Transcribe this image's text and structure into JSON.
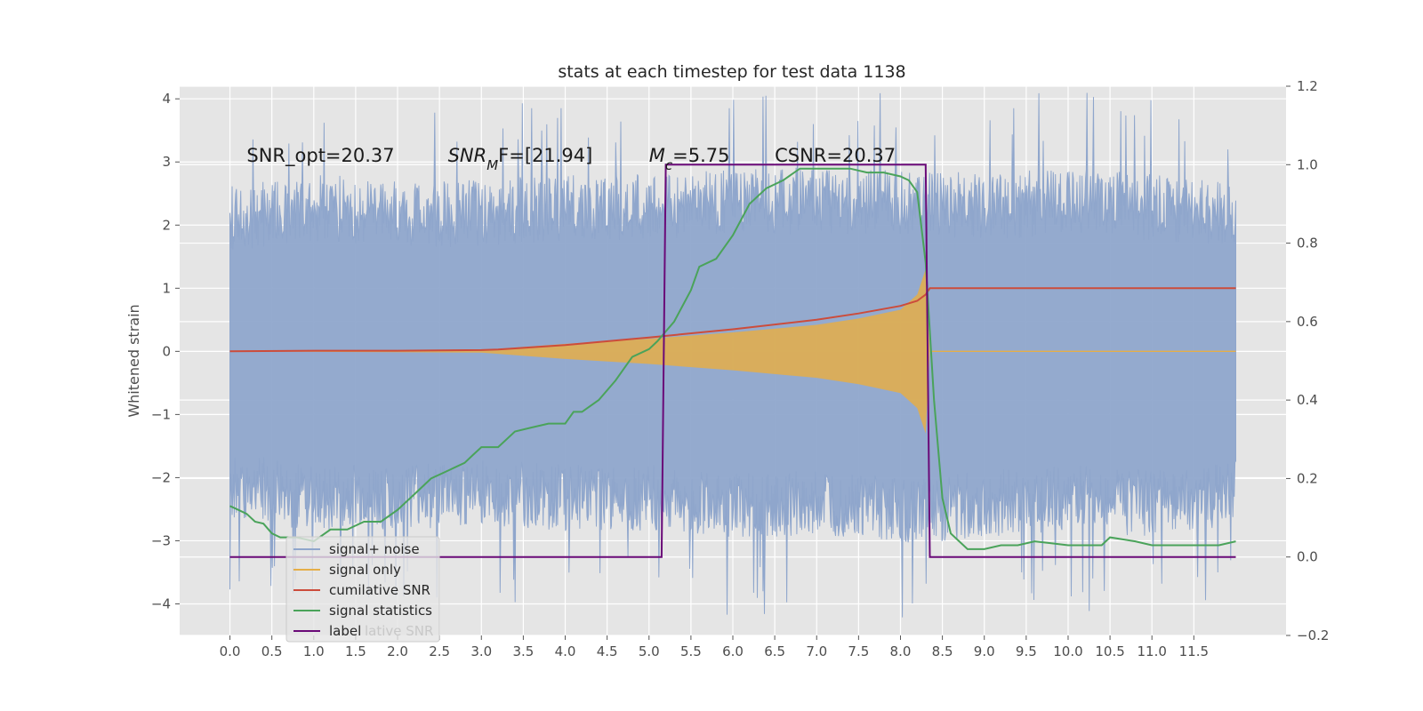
{
  "chart_data": {
    "type": "line",
    "title": "stats at each timestep for test data 1138",
    "ylabel": "Whitened strain",
    "xlabel": "",
    "xlim": [
      -0.6,
      12.6
    ],
    "ylim": [
      -4.5,
      4.2
    ],
    "y2lim": [
      -0.2,
      1.2
    ],
    "grid": true,
    "legend_position": "lower-left",
    "x_ticks": [
      "0.0",
      "0.5",
      "1.0",
      "1.5",
      "2.0",
      "2.5",
      "3.0",
      "3.5",
      "4.0",
      "4.5",
      "5.0",
      "5.5",
      "6.0",
      "6.5",
      "7.0",
      "7.5",
      "8.0",
      "8.5",
      "9.0",
      "9.5",
      "10.0",
      "10.5",
      "11.0",
      "11.5"
    ],
    "y_ticks": [
      "4",
      "3",
      "2",
      "1",
      "0",
      "−1",
      "−2",
      "−3",
      "−4"
    ],
    "y2_ticks": [
      "1.2",
      "1.0",
      "0.8",
      "0.6",
      "0.4",
      "0.2",
      "0.0",
      "−0.2"
    ],
    "annotations": [
      {
        "text": "SNR_opt=20.37",
        "x": 0.2,
        "y": 3.0
      },
      {
        "text": "SNR",
        "sub": "M",
        "suffix": "F=[21.94]",
        "x": 2.6,
        "y": 3.0
      },
      {
        "text": "M",
        "sub": "c",
        "suffix": "=5.75",
        "x": 5.0,
        "y": 3.0
      },
      {
        "text": "CSNR=20.37",
        "x": 6.5,
        "y": 3.0
      }
    ],
    "series": [
      {
        "name": "signal+ noise",
        "color": "#8fa6cc",
        "axis": "left",
        "envelope": {
          "x": [
            0.0,
            1.0,
            2.0,
            3.0,
            4.0,
            5.0,
            6.0,
            7.0,
            8.0,
            8.3,
            9.0,
            10.0,
            11.0,
            12.0
          ],
          "upper": [
            2.1,
            2.3,
            2.2,
            2.2,
            2.3,
            2.3,
            2.4,
            2.4,
            2.4,
            2.4,
            2.3,
            2.4,
            2.3,
            2.2
          ],
          "lower": [
            -2.1,
            -2.3,
            -2.3,
            -2.2,
            -2.3,
            -2.3,
            -2.4,
            -2.4,
            -2.5,
            -2.5,
            -2.4,
            -2.3,
            -2.4,
            -2.2
          ]
        }
      },
      {
        "name": "signal only",
        "color": "#e5ae48",
        "axis": "left",
        "envelope": {
          "x": [
            0.0,
            3.0,
            4.0,
            5.0,
            6.0,
            7.0,
            7.5,
            8.0,
            8.2,
            8.3,
            8.35,
            12.0
          ],
          "upper": [
            0.0,
            0.02,
            0.12,
            0.2,
            0.3,
            0.42,
            0.52,
            0.66,
            0.9,
            1.3,
            0.0,
            0.0
          ],
          "lower": [
            0.0,
            -0.02,
            -0.12,
            -0.2,
            -0.3,
            -0.42,
            -0.52,
            -0.66,
            -0.9,
            -1.3,
            0.0,
            0.0
          ]
        }
      },
      {
        "name": "cumilative SNR",
        "color": "#cc4c3b",
        "axis": "left",
        "x": [
          0.0,
          1.0,
          2.0,
          3.0,
          3.2,
          4.0,
          5.0,
          6.0,
          7.0,
          7.5,
          8.0,
          8.2,
          8.3,
          8.35,
          12.0
        ],
        "y": [
          0.0,
          0.01,
          0.01,
          0.02,
          0.03,
          0.1,
          0.22,
          0.35,
          0.5,
          0.6,
          0.72,
          0.8,
          0.9,
          1.0,
          1.0
        ]
      },
      {
        "name": "signal statistics",
        "color": "#4aa35a",
        "axis": "right",
        "x": [
          0.0,
          0.1,
          0.2,
          0.3,
          0.4,
          0.5,
          0.6,
          0.8,
          1.0,
          1.2,
          1.4,
          1.6,
          1.8,
          2.0,
          2.2,
          2.4,
          2.6,
          2.8,
          2.9,
          3.0,
          3.2,
          3.4,
          3.6,
          3.8,
          4.0,
          4.1,
          4.2,
          4.4,
          4.6,
          4.7,
          4.8,
          5.0,
          5.1,
          5.3,
          5.5,
          5.6,
          5.8,
          6.0,
          6.2,
          6.4,
          6.6,
          6.8,
          7.0,
          7.2,
          7.4,
          7.6,
          7.8,
          8.0,
          8.1,
          8.2,
          8.3,
          8.4,
          8.5,
          8.6,
          8.8,
          9.0,
          9.2,
          9.4,
          9.6,
          9.8,
          10.0,
          10.2,
          10.4,
          10.5,
          10.8,
          11.0,
          11.5,
          11.8,
          12.0
        ],
        "y": [
          0.13,
          0.12,
          0.11,
          0.09,
          0.085,
          0.06,
          0.05,
          0.05,
          0.04,
          0.07,
          0.07,
          0.09,
          0.09,
          0.12,
          0.16,
          0.2,
          0.22,
          0.24,
          0.26,
          0.28,
          0.28,
          0.32,
          0.33,
          0.34,
          0.34,
          0.37,
          0.37,
          0.4,
          0.45,
          0.48,
          0.51,
          0.53,
          0.55,
          0.6,
          0.68,
          0.74,
          0.76,
          0.82,
          0.9,
          0.94,
          0.96,
          0.99,
          0.99,
          0.99,
          0.99,
          0.98,
          0.98,
          0.97,
          0.96,
          0.93,
          0.75,
          0.4,
          0.15,
          0.06,
          0.02,
          0.02,
          0.03,
          0.03,
          0.04,
          0.035,
          0.03,
          0.03,
          0.03,
          0.05,
          0.04,
          0.03,
          0.03,
          0.03,
          0.04
        ]
      },
      {
        "name": "label",
        "color": "#6a0a78",
        "axis": "right",
        "x": [
          0.0,
          5.15,
          5.2,
          8.3,
          8.35,
          12.0
        ],
        "y": [
          0.0,
          0.0,
          1.0,
          1.0,
          0.0,
          0.0
        ]
      }
    ],
    "legend": [
      {
        "name": "signal+ noise",
        "color": "#8fa6cc"
      },
      {
        "name": "signal only",
        "color": "#e5ae48"
      },
      {
        "name": "cumilative SNR",
        "color": "#cc4c3b"
      },
      {
        "name": "signal statistics",
        "color": "#4aa35a"
      },
      {
        "name": "label",
        "color": "#6a0a78"
      }
    ],
    "legend_ghost_text": "lative SNR"
  }
}
